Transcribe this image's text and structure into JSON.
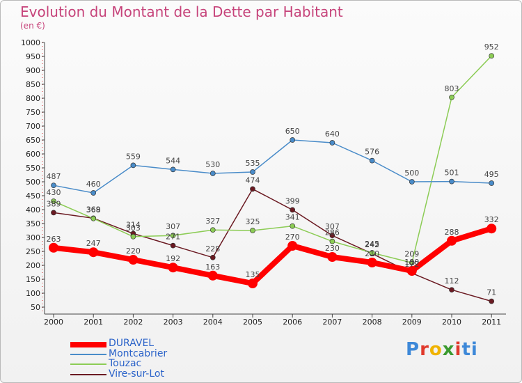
{
  "chart_data": {
    "type": "line",
    "title": "Evolution du Montant de la Dette par Habitant",
    "subtitle": "(en €)",
    "xlabel": "",
    "ylabel": "",
    "categories": [
      "2000",
      "2001",
      "2002",
      "2003",
      "2004",
      "2005",
      "2006",
      "2007",
      "2008",
      "2009",
      "2010",
      "2011"
    ],
    "ylim": [
      50,
      1000
    ],
    "yticks": [
      50,
      100,
      150,
      200,
      250,
      300,
      350,
      400,
      450,
      500,
      550,
      600,
      650,
      700,
      750,
      800,
      850,
      900,
      950,
      1000
    ],
    "grid": false,
    "legend_position": "bottom-left",
    "series": [
      {
        "name": "DURAVEL",
        "color": "#ff0000",
        "values": [
          263,
          247,
          220,
          192,
          163,
          135,
          270,
          230,
          210,
          180,
          288,
          332
        ]
      },
      {
        "name": "Montcabrier",
        "color": "#4a8cc9",
        "values": [
          487,
          460,
          559,
          544,
          530,
          535,
          650,
          640,
          576,
          500,
          501,
          495
        ]
      },
      {
        "name": "Touzac",
        "color": "#8ccc55",
        "values": [
          430,
          368,
          303,
          307,
          327,
          325,
          341,
          286,
          245,
          209,
          803,
          952
        ]
      },
      {
        "name": "Vire-sur-Lot",
        "color": "#6b1a22",
        "values": [
          389,
          369,
          314,
          271,
          228,
          474,
          399,
          307,
          242,
          172,
          112,
          71
        ]
      }
    ]
  },
  "logo": {
    "text": "Proxiti",
    "letters": [
      "P",
      "r",
      "o",
      "x",
      "i",
      "ti"
    ]
  }
}
